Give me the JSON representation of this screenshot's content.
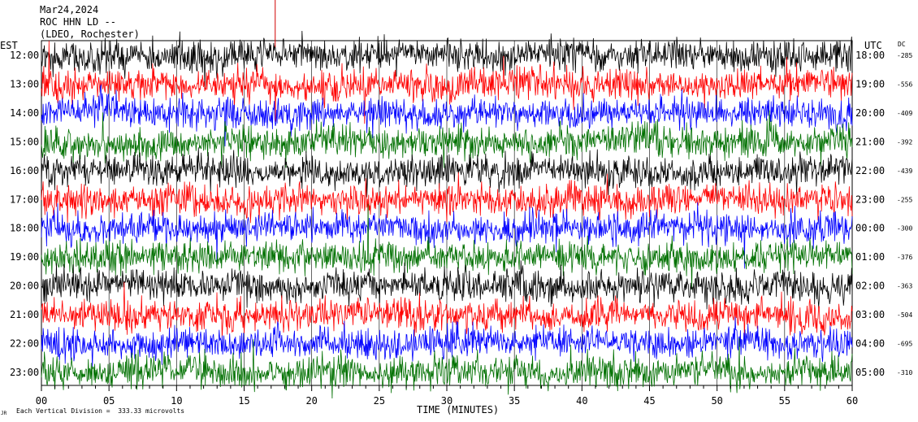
{
  "header": {
    "date": "Mar24,2024",
    "station": "ROC HHN LD --",
    "network": "(LDEO, Rochester)"
  },
  "labels": {
    "left_zone": "EST",
    "right_zone": "UTC",
    "dc_header": "DC",
    "xlabel": "TIME (MINUTES)",
    "footnote": "Each Vertical Division =  333.33 microvolts",
    "corner_mark": "JR"
  },
  "colors": {
    "trace_cycle": [
      "#000000",
      "#ff0000",
      "#0000ff",
      "#007000"
    ],
    "event_line": "#d00000"
  },
  "chart_data": {
    "type": "line",
    "title": "",
    "xlabel": "TIME (MINUTES)",
    "ylabel": "",
    "xlim": [
      0,
      60
    ],
    "x_ticks": [
      "00",
      "05",
      "10",
      "15",
      "20",
      "25",
      "30",
      "35",
      "40",
      "45",
      "50",
      "55",
      "60"
    ],
    "rows": [
      {
        "est": "12:00",
        "utc": "18:00",
        "dc": "-285",
        "color": "#000000"
      },
      {
        "est": "13:00",
        "utc": "19:00",
        "dc": "-556",
        "color": "#ff0000"
      },
      {
        "est": "14:00",
        "utc": "20:00",
        "dc": "-409",
        "color": "#0000ff"
      },
      {
        "est": "15:00",
        "utc": "21:00",
        "dc": "-392",
        "color": "#007000"
      },
      {
        "est": "16:00",
        "utc": "22:00",
        "dc": "-439",
        "color": "#000000"
      },
      {
        "est": "17:00",
        "utc": "23:00",
        "dc": "-255",
        "color": "#ff0000"
      },
      {
        "est": "18:00",
        "utc": "00:00",
        "dc": "-300",
        "color": "#0000ff"
      },
      {
        "est": "19:00",
        "utc": "01:00",
        "dc": "-376",
        "color": "#007000"
      },
      {
        "est": "20:00",
        "utc": "02:00",
        "dc": "-363",
        "color": "#000000"
      },
      {
        "est": "21:00",
        "utc": "03:00",
        "dc": "-504",
        "color": "#ff0000"
      },
      {
        "est": "22:00",
        "utc": "04:00",
        "dc": "-695",
        "color": "#0000ff"
      },
      {
        "est": "23:00",
        "utc": "05:00",
        "dc": "-310",
        "color": "#007000"
      }
    ],
    "event_marker_minutes": [
      17.3
    ],
    "vertical_division_microvolts": 333.33,
    "grid": true,
    "legend": "none"
  }
}
